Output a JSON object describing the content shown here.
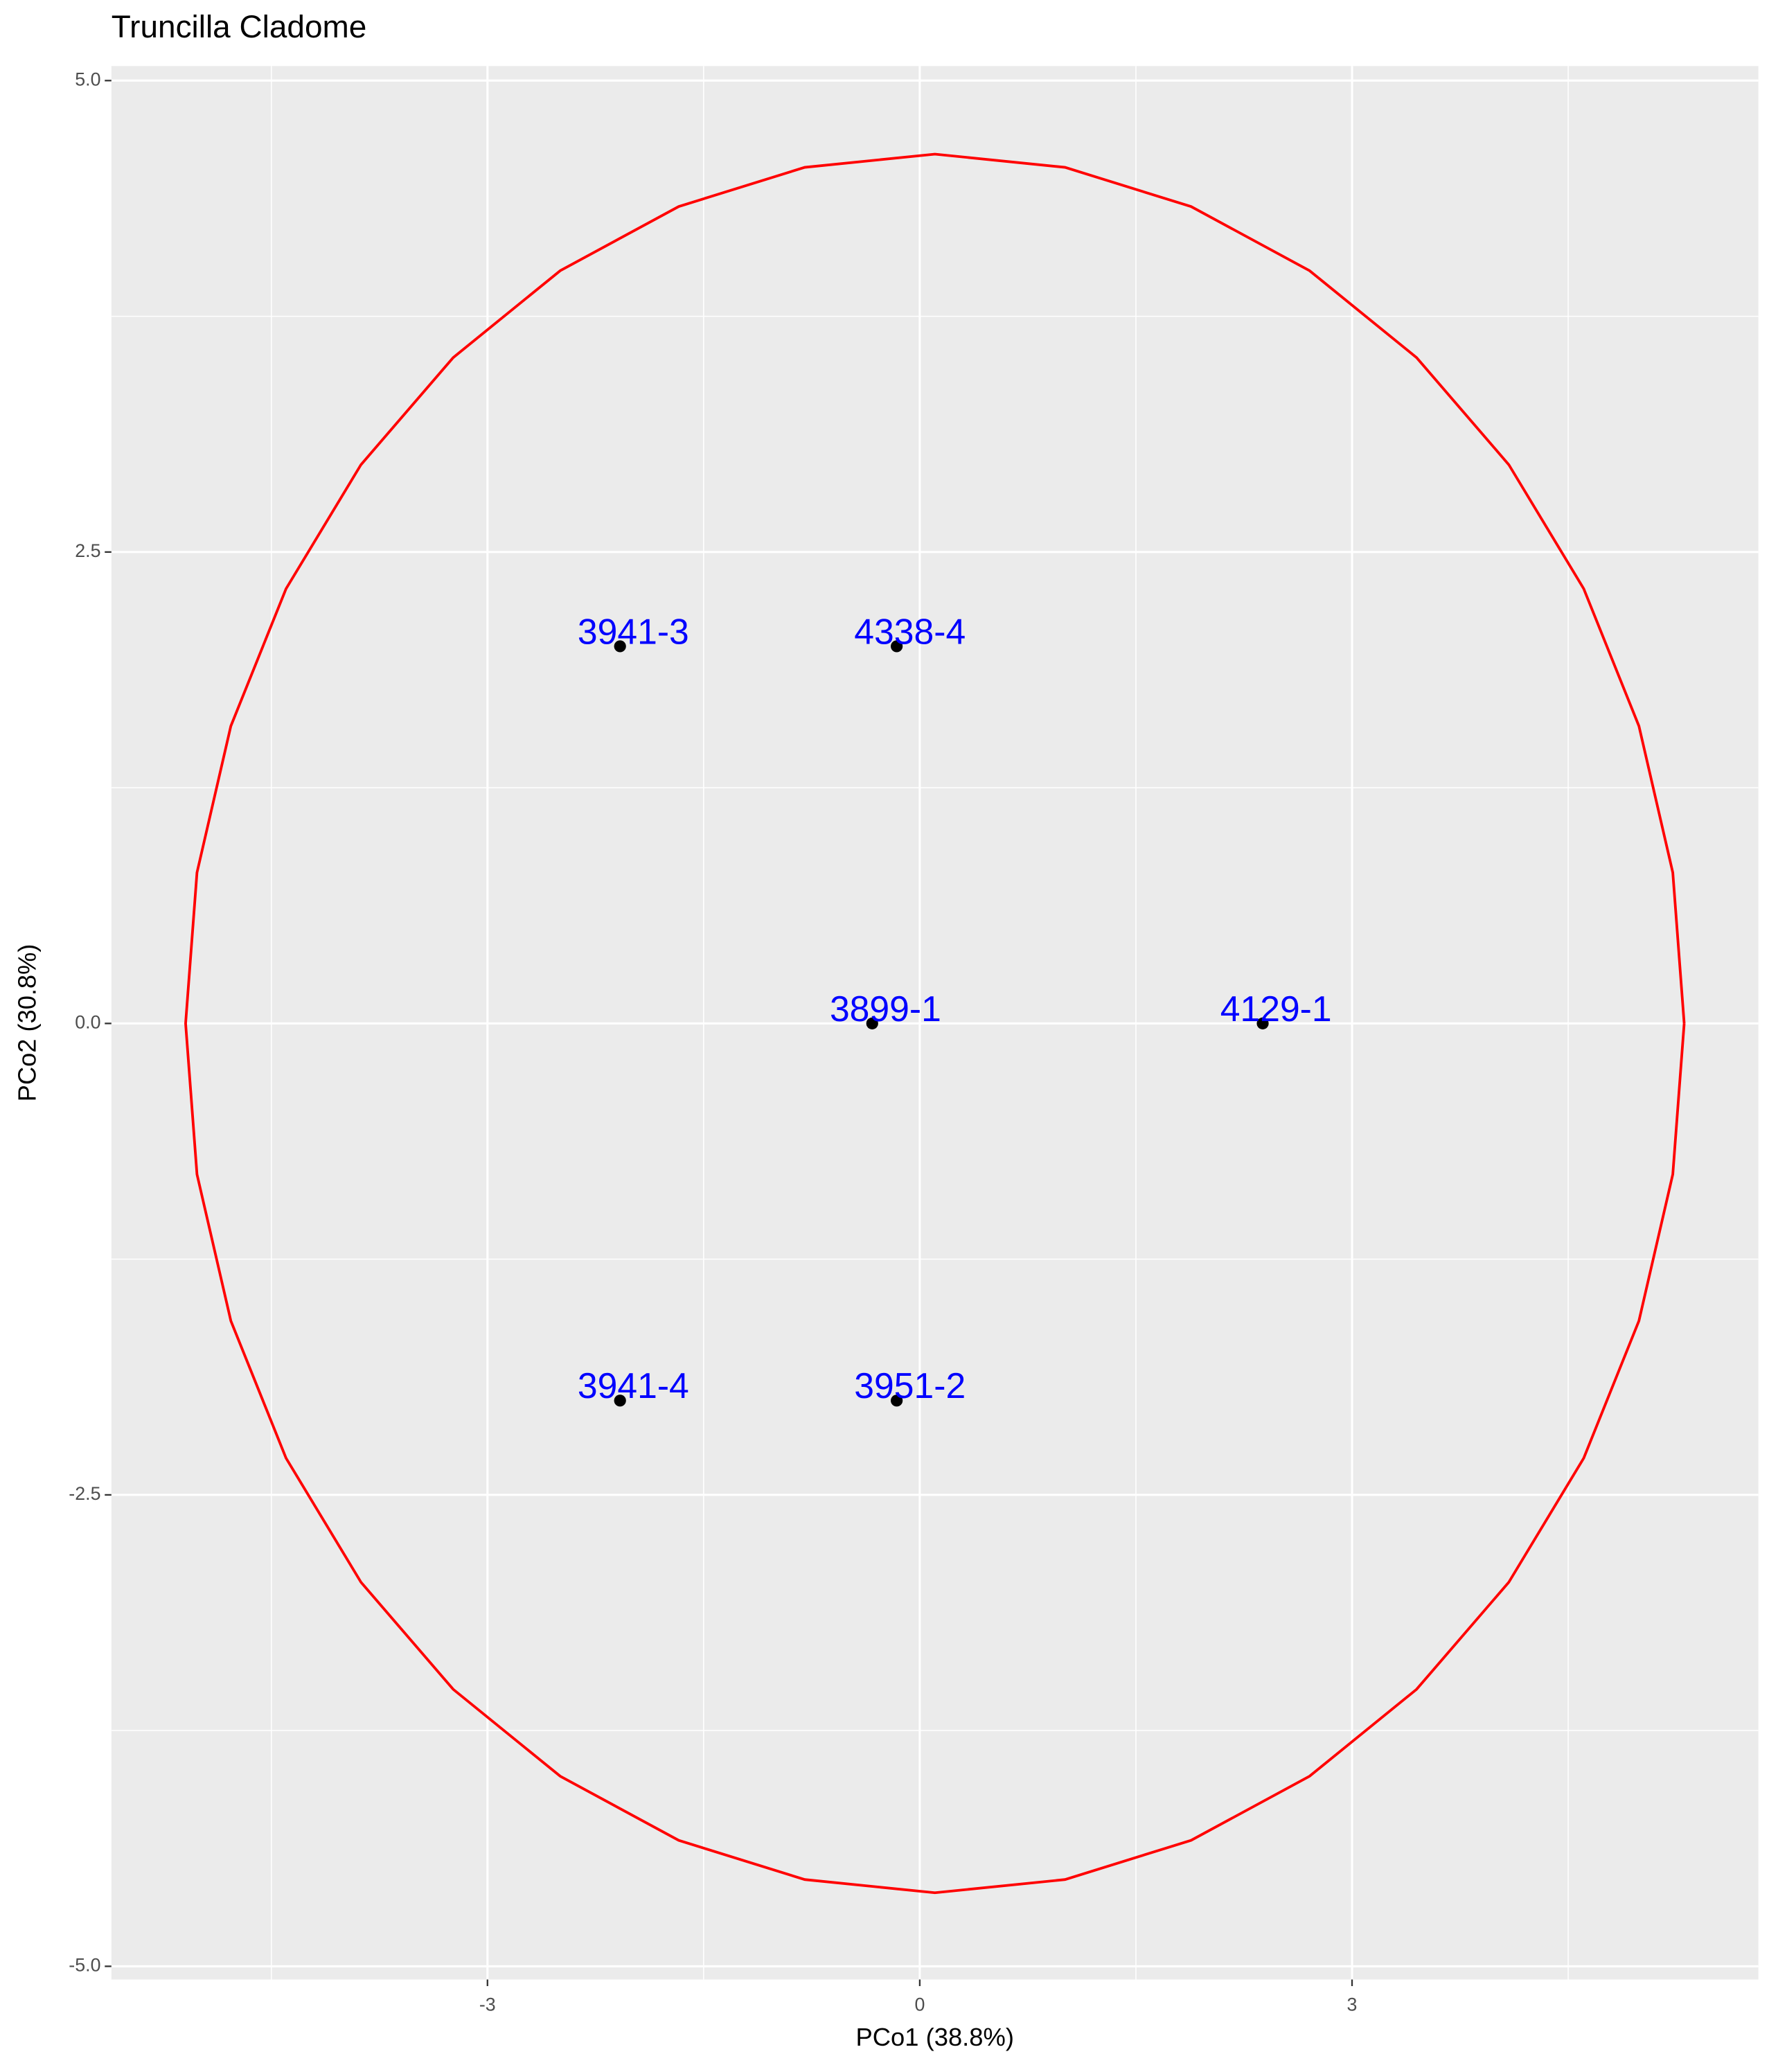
{
  "chart_data": {
    "type": "scatter",
    "title": "Truncilla Cladome",
    "xlabel": "PCo1 (38.8%)",
    "ylabel": "PCo2 (30.8%)",
    "xlim": [
      -5.61,
      5.82
    ],
    "ylim": [
      -5.07,
      5.077
    ],
    "xticks": [
      -3,
      0,
      3
    ],
    "yticks": [
      {
        "value": -5,
        "label": "-5.0"
      },
      {
        "value": -2.5,
        "label": "-2.5"
      },
      {
        "value": 0,
        "label": "0.0"
      },
      {
        "value": 2.5,
        "label": "2.5"
      },
      {
        "value": 5,
        "label": "5.0"
      }
    ],
    "grid": true,
    "points": {
      "x": [
        -2.08,
        -0.16,
        -0.33,
        2.38,
        -2.08,
        -0.16
      ],
      "y": [
        2.0,
        2.0,
        0.0,
        0.0,
        -2.0,
        -2.0
      ],
      "labels": [
        "3941-3",
        "4338-4",
        "3899-1",
        "4129-1",
        "3941-4",
        "3951-2"
      ],
      "color": "#000000",
      "label_color": "#0000ff"
    },
    "ellipse": {
      "color": "#ff0000",
      "x": [
        5.305,
        5.226,
        4.991,
        4.608,
        4.088,
        3.448,
        2.705,
        1.883,
        1.008,
        0.105,
        -0.798,
        -1.673,
        -2.495,
        -3.238,
        -3.878,
        -4.398,
        -4.781,
        -5.016,
        -5.095,
        -5.016,
        -4.781,
        -4.398,
        -3.878,
        -3.238,
        -2.495,
        -1.673,
        -0.798,
        0.105,
        1.008,
        1.883,
        2.705,
        3.448,
        4.088,
        4.608,
        4.991,
        5.226,
        5.305
      ],
      "y": [
        0,
        0.8,
        1.577,
        2.305,
        2.963,
        3.531,
        3.992,
        4.332,
        4.54,
        4.61,
        4.54,
        4.332,
        3.992,
        3.531,
        2.963,
        2.305,
        1.577,
        0.8,
        0,
        -0.8,
        -1.577,
        -2.305,
        -2.963,
        -3.531,
        -3.992,
        -4.332,
        -4.54,
        -4.61,
        -4.54,
        -4.332,
        -3.992,
        -3.531,
        -2.963,
        -2.305,
        -1.577,
        -0.8,
        0
      ]
    }
  }
}
